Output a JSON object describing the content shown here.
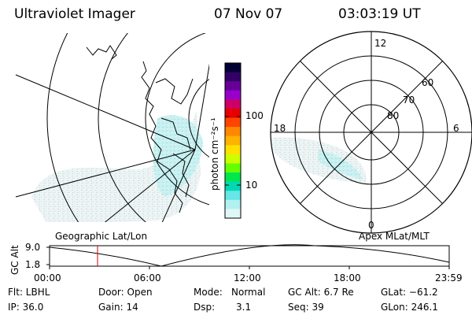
{
  "header": {
    "title": "Ultraviolet Imager",
    "date": "07 Nov 07",
    "time": "03:03:19 UT"
  },
  "colorbar": {
    "label": "photon cm⁻²s⁻¹",
    "ticks": [
      "100",
      "10"
    ],
    "colors": [
      "#000033",
      "#330066",
      "#660099",
      "#9900cc",
      "#cc0066",
      "#e60000",
      "#ff4400",
      "#ff8800",
      "#ffb300",
      "#ffe000",
      "#ccff00",
      "#66ff00",
      "#00e64d",
      "#00d9b3",
      "#66e6e6",
      "#b3f0f0",
      "#e0f7f7"
    ]
  },
  "polar": {
    "mlt_labels": [
      "12",
      "6",
      "18",
      "0"
    ],
    "lat_labels": [
      "60",
      "70",
      "80"
    ]
  },
  "geo_label": "Geographic Lat/Lon",
  "apex_label": "Apex MLat/MLT",
  "alt_plot": {
    "ylabel": "GC Alt",
    "yticks": [
      "9.0",
      "1.8"
    ],
    "xticks": [
      "00:00",
      "06:00",
      "12:00",
      "18:00",
      "23:59"
    ],
    "marker_time": "03:03"
  },
  "info": {
    "filter": "Flt: LBHL",
    "door": "Door: Open",
    "mode_label": "Mode:",
    "mode_value": "Normal",
    "gc_alt": "GC Alt: 6.7 Re",
    "glat": "GLat: −61.2",
    "ip": "IP: 36.0",
    "gain": "Gain: 14",
    "dsp_label": "Dsp:",
    "dsp_value": "3.1",
    "seq": "Seq: 39",
    "glon": "GLon: 246.1"
  },
  "accent_colors": {
    "marker": "#cc0000",
    "aurora": "#b3f0f0"
  }
}
